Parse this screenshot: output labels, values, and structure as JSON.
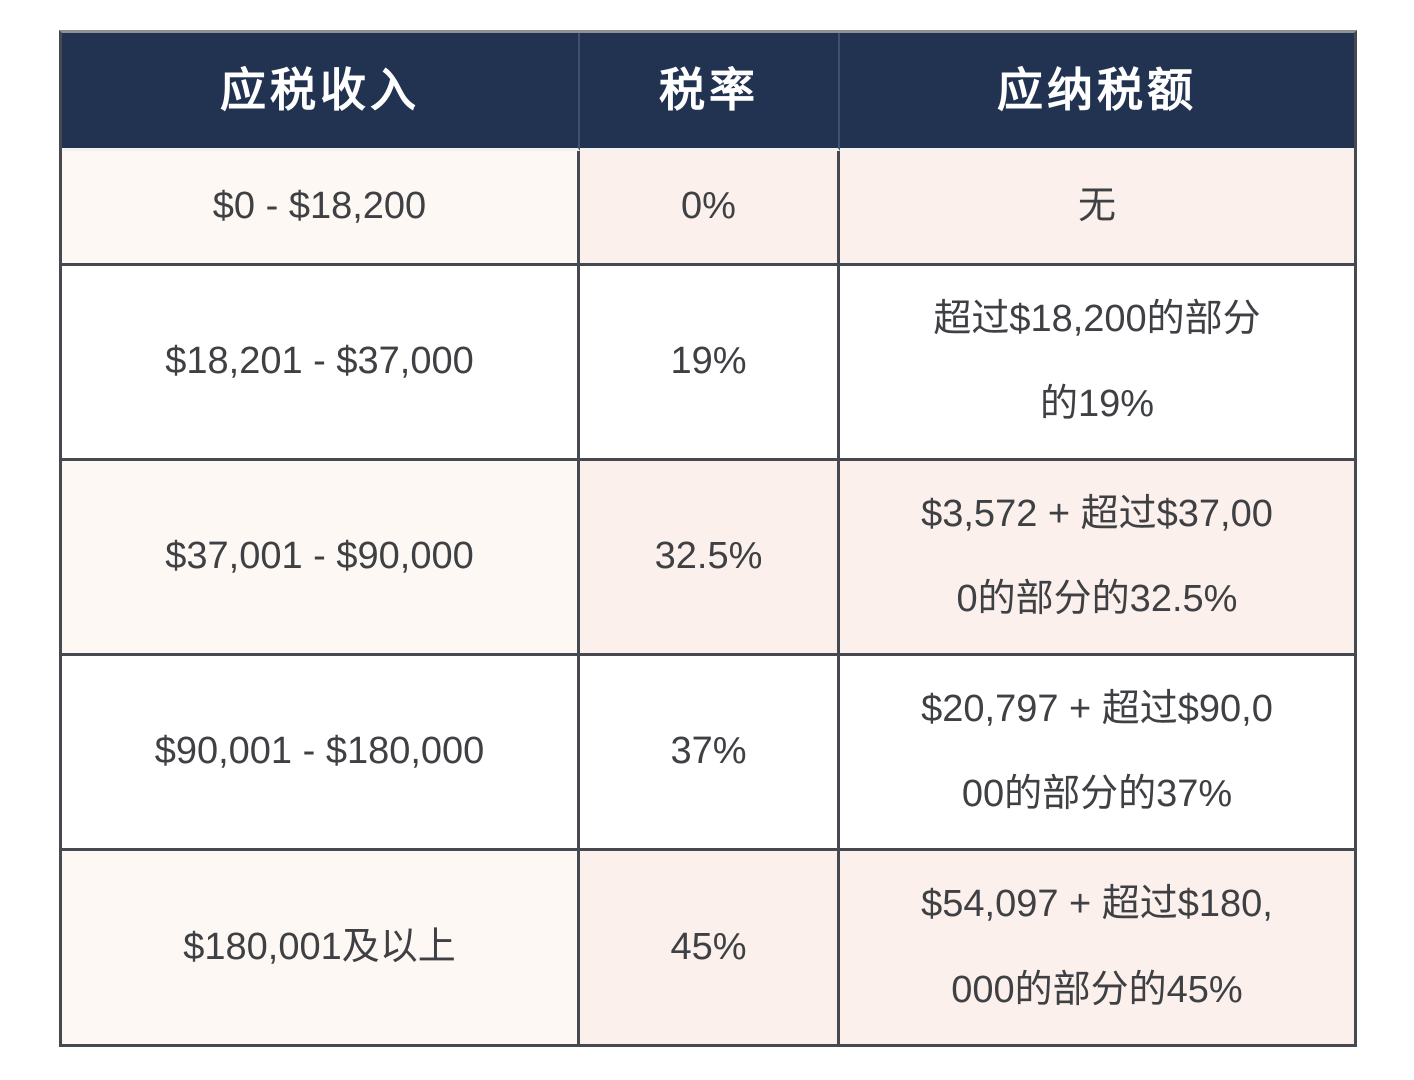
{
  "colors": {
    "header_bg": "#223351",
    "header_text": "#ffffff",
    "stripe_col1": "#fdf8f4",
    "stripe_col23": "#fbf0ec",
    "row_white": "#ffffff",
    "border": "#46494f",
    "border_top": "#8d9095",
    "text": "#3e4044"
  },
  "table": {
    "columns": [
      {
        "label": "应税收入"
      },
      {
        "label": "税率"
      },
      {
        "label": "应纳税额"
      }
    ],
    "rows": [
      {
        "income": "$0 - $18,200",
        "rate": "0%",
        "tax": "无"
      },
      {
        "income": "$18,201 - $37,000",
        "rate": "19%",
        "tax": "超过$18,200的部分\n的19%"
      },
      {
        "income": "$37,001 - $90,000",
        "rate": "32.5%",
        "tax": "$3,572 + 超过$37,00\n0的部分的32.5%"
      },
      {
        "income": "$90,001 - $180,000",
        "rate": "37%",
        "tax": "$20,797 + 超过$90,0\n00的部分的37%"
      },
      {
        "income": "$180,001及以上",
        "rate": "45%",
        "tax": "$54,097 + 超过$180,\n000的部分的45%"
      }
    ]
  },
  "chart_data": {
    "type": "table",
    "title": "",
    "columns": [
      "应税收入",
      "税率",
      "应纳税额"
    ],
    "rows": [
      [
        "$0 - $18,200",
        "0%",
        "无"
      ],
      [
        "$18,201 - $37,000",
        "19%",
        "超过$18,200的部分的19%"
      ],
      [
        "$37,001 - $90,000",
        "32.5%",
        "$3,572 + 超过$37,000的部分的32.5%"
      ],
      [
        "$90,001 - $180,000",
        "37%",
        "$20,797 + 超过$90,000的部分的37%"
      ],
      [
        "$180,001及以上",
        "45%",
        "$54,097 + 超过$180,000的部分的45%"
      ]
    ],
    "rates_percent": [
      0,
      19,
      32.5,
      37,
      45
    ],
    "bracket_lower_bounds": [
      0,
      18201,
      37001,
      90001,
      180001
    ],
    "bracket_upper_bounds": [
      18200,
      37000,
      90000,
      180000,
      null
    ],
    "base_tax_amounts": [
      0,
      0,
      3572,
      20797,
      54097
    ]
  }
}
